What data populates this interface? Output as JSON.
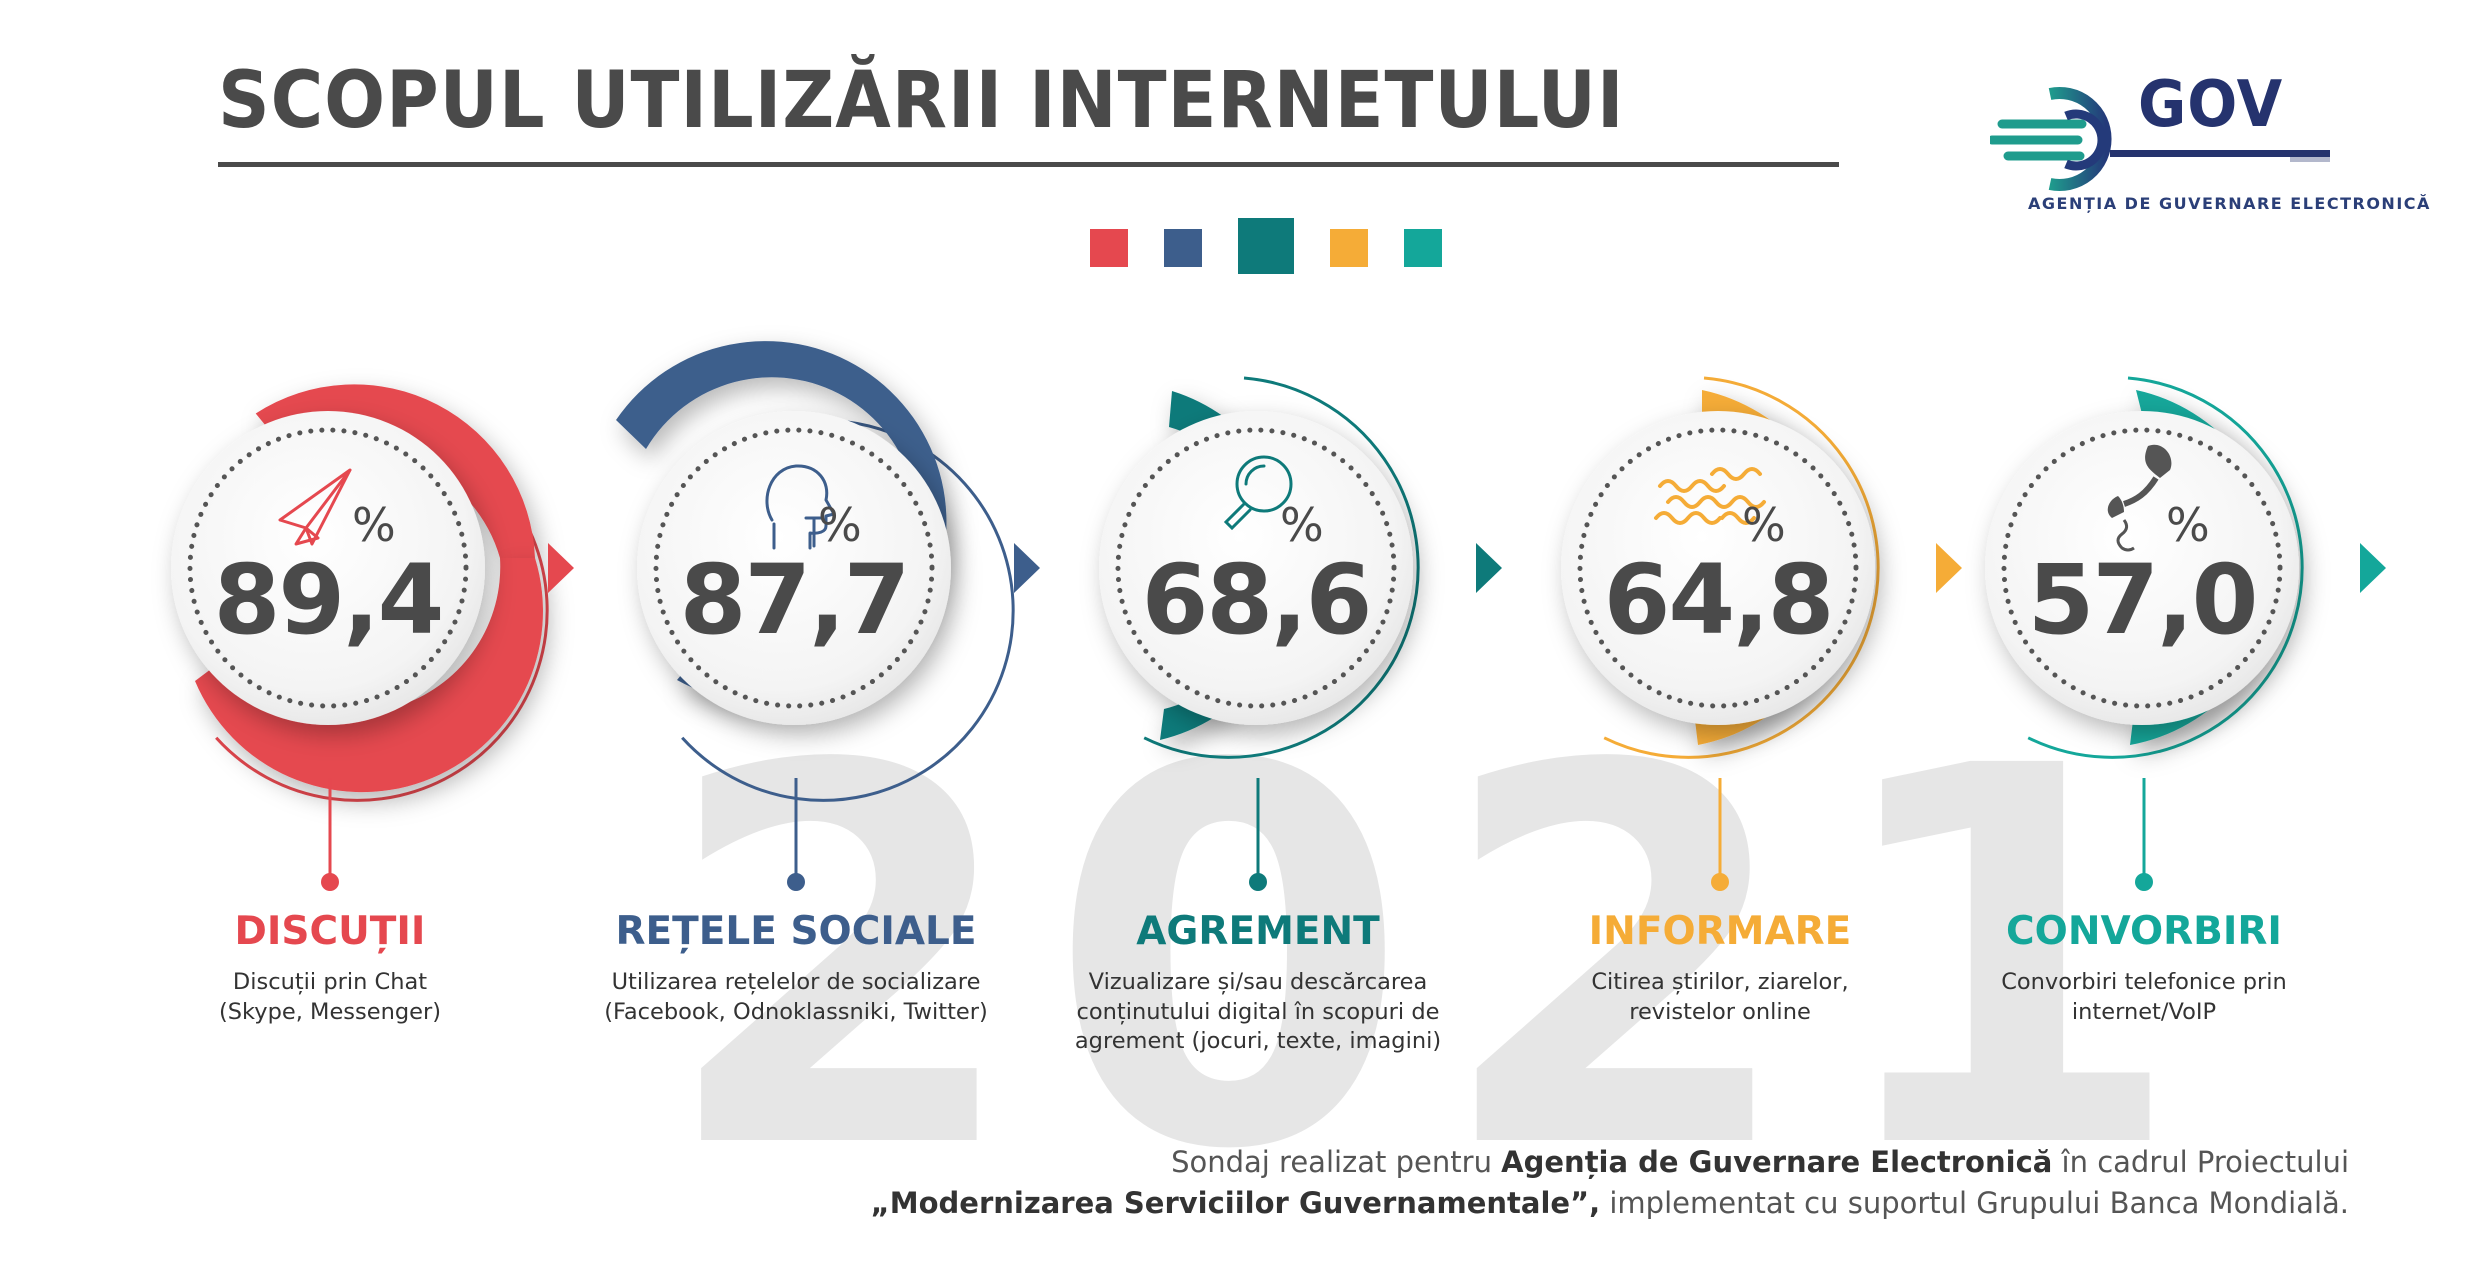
{
  "title": "SCOPUL UTILIZĂRII INTERNETULUI",
  "logo": {
    "brand": "GOV",
    "subtitle": "AGENȚIA DE GUVERNARE ELECTRONICĂ",
    "color": "#25336e"
  },
  "year": "2021",
  "palette": [
    "#e5484f",
    "#3d5e8c",
    "#0e7a7a",
    "#f5ac37",
    "#14a79a"
  ],
  "percent_sign": "%",
  "items": [
    {
      "value": "89,4",
      "title": "DISCUȚII",
      "desc1": "Discuții prin Chat",
      "desc2": "(Skype, Messenger)",
      "desc3": "",
      "color": "#e5484f",
      "icon": "paper-plane-icon"
    },
    {
      "value": "87,7",
      "title": "REȚELE SOCIALE",
      "desc1": "Utilizarea rețelelor de socializare",
      "desc2": "(Facebook, Odnoklassniki, Twitter)",
      "desc3": "",
      "color": "#3d5e8c",
      "icon": "head-profile-icon"
    },
    {
      "value": "68,6",
      "title": "AGREMENT",
      "desc1": "Vizualizare și/sau descărcarea",
      "desc2": "conținutului digital în scopuri de",
      "desc3": "agrement (jocuri, texte, imagini)",
      "color": "#0e7a7a",
      "icon": "magnifier-icon"
    },
    {
      "value": "64,8",
      "title": "INFORMARE",
      "desc1": "Citirea știrilor, ziarelor,",
      "desc2": "revistelor online",
      "desc3": "",
      "color": "#f5ac37",
      "icon": "waves-icon"
    },
    {
      "value": "57,0",
      "title": "CONVORBIRI",
      "desc1": "Convorbiri telefonice prin",
      "desc2": "internet/VoIP",
      "desc3": "",
      "color": "#14a79a",
      "icon": "phone-handset-icon"
    }
  ],
  "footer": {
    "l1_a": "Sondaj realizat pentru ",
    "l1_b": "Agenția de Guvernare Electronică",
    "l1_c": " în cadrul Proiectului",
    "l2_a": "„Modernizarea Serviciilor Guvernamentale”,",
    "l2_b": " implementat cu suportul Grupului Banca Mondială."
  }
}
